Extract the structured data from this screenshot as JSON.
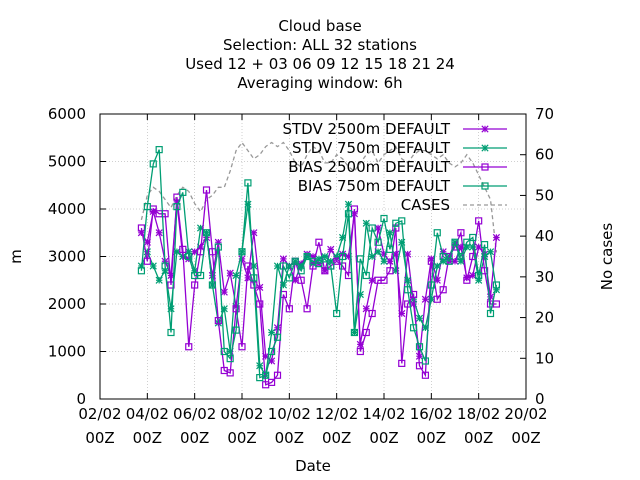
{
  "chart_data": {
    "type": "line",
    "title_lines": [
      "Cloud base",
      "Selection: ALL      32 stations",
      "Used  12 + 03 06 09 12 15 18 21 24",
      "Averaging window:  6h"
    ],
    "xlabel": "Date",
    "ylabel": "m",
    "y2label": "No cases",
    "x_ticks": [
      {
        "day": 2,
        "top": "02/02",
        "bottom": "00Z"
      },
      {
        "day": 4,
        "top": "04/02",
        "bottom": "00Z"
      },
      {
        "day": 6,
        "top": "06/02",
        "bottom": "00Z"
      },
      {
        "day": 8,
        "top": "08/02",
        "bottom": "00Z"
      },
      {
        "day": 10,
        "top": "10/02",
        "bottom": "00Z"
      },
      {
        "day": 12,
        "top": "12/02",
        "bottom": "00Z"
      },
      {
        "day": 14,
        "top": "14/02",
        "bottom": "00Z"
      },
      {
        "day": 16,
        "top": "16/02",
        "bottom": "00Z"
      },
      {
        "day": 18,
        "top": "18/02",
        "bottom": "00Z"
      },
      {
        "day": 20,
        "top": "20/02",
        "bottom": "00Z"
      }
    ],
    "xlim": [
      2,
      20
    ],
    "ylim": [
      0,
      6000
    ],
    "y_ticks": [
      0,
      1000,
      2000,
      3000,
      4000,
      5000,
      6000
    ],
    "y2lim": [
      0,
      70
    ],
    "y2_ticks": [
      0,
      10,
      20,
      30,
      40,
      50,
      60,
      70
    ],
    "grid": true,
    "legend_position": "top-right",
    "series": [
      {
        "name": "STDV 2500m DEFAULT",
        "axis": "y",
        "color": "#9400d3",
        "marker": "star",
        "x": [
          3.75,
          4.0,
          4.25,
          4.5,
          4.75,
          5.0,
          5.25,
          5.5,
          5.75,
          6.0,
          6.25,
          6.5,
          6.75,
          7.0,
          7.25,
          7.5,
          7.75,
          8.0,
          8.25,
          8.5,
          8.75,
          9.0,
          9.25,
          9.5,
          9.75,
          10.0,
          10.25,
          10.5,
          10.75,
          11.0,
          11.25,
          11.5,
          11.75,
          12.0,
          12.25,
          12.5,
          12.75,
          13.0,
          13.25,
          13.5,
          13.75,
          14.0,
          14.25,
          14.5,
          14.75,
          15.0,
          15.25,
          15.5,
          15.75,
          16.0,
          16.25,
          16.5,
          16.75,
          17.0,
          17.25,
          17.5,
          17.75,
          18.0,
          18.25,
          18.5,
          18.75
        ],
        "y": [
          3500,
          3300,
          3950,
          3500,
          2900,
          2600,
          4150,
          3000,
          2950,
          3100,
          3200,
          3400,
          2600,
          3300,
          2250,
          2650,
          1950,
          2950,
          2550,
          3500,
          2350,
          900,
          800,
          1500,
          2950,
          2800,
          2500,
          2850,
          3050,
          3000,
          2850,
          2700,
          3150,
          2950,
          3050,
          3000,
          3900,
          1150,
          1900,
          2500,
          3600,
          3050,
          2900,
          3050,
          1800,
          3050,
          2000,
          900,
          2100,
          2950,
          2500,
          3100,
          2900,
          2900,
          3200,
          2550,
          2600,
          3200,
          3050,
          2150,
          3400
        ]
      },
      {
        "name": "STDV 750m DEFAULT",
        "axis": "y",
        "color": "#009e73",
        "marker": "star",
        "x": [
          3.75,
          4.0,
          4.25,
          4.5,
          4.75,
          5.0,
          5.25,
          5.5,
          5.75,
          6.0,
          6.25,
          6.5,
          6.75,
          7.0,
          7.25,
          7.5,
          7.75,
          8.0,
          8.25,
          8.5,
          8.75,
          9.0,
          9.25,
          9.5,
          9.75,
          10.0,
          10.25,
          10.5,
          10.75,
          11.0,
          11.25,
          11.5,
          11.75,
          12.0,
          12.25,
          12.5,
          12.75,
          13.0,
          13.25,
          13.5,
          13.75,
          14.0,
          14.25,
          14.5,
          14.75,
          15.0,
          15.25,
          15.5,
          15.75,
          16.0,
          16.25,
          16.5,
          16.75,
          17.0,
          17.25,
          17.5,
          17.75,
          18.0,
          18.25,
          18.5,
          18.75
        ],
        "y": [
          2800,
          3100,
          2800,
          2500,
          2700,
          1900,
          3100,
          3000,
          3100,
          2700,
          3600,
          3500,
          2400,
          1600,
          1900,
          1000,
          2600,
          3100,
          4100,
          2800,
          700,
          500,
          1400,
          2800,
          2400,
          2800,
          2900,
          2800,
          3000,
          2850,
          2950,
          3000,
          2900,
          3000,
          3400,
          4100,
          1400,
          2200,
          3700,
          3000,
          3100,
          2900,
          3500,
          2700,
          3300,
          2500,
          2100,
          1700,
          1500,
          2100,
          2800,
          2900,
          3000,
          3300,
          2900,
          3200,
          3200,
          2500,
          3000,
          3100,
          2300
        ]
      },
      {
        "name": "BIAS 2500m DEFAULT",
        "axis": "y",
        "color": "#9400d3",
        "marker": "square",
        "x": [
          3.75,
          4.0,
          4.25,
          4.5,
          4.75,
          5.0,
          5.25,
          5.5,
          5.75,
          6.0,
          6.25,
          6.5,
          6.75,
          7.0,
          7.25,
          7.5,
          7.75,
          8.0,
          8.25,
          8.5,
          8.75,
          9.0,
          9.25,
          9.5,
          9.75,
          10.0,
          10.25,
          10.5,
          10.75,
          11.0,
          11.25,
          11.5,
          11.75,
          12.0,
          12.25,
          12.5,
          12.75,
          13.0,
          13.25,
          13.5,
          13.75,
          14.0,
          14.25,
          14.5,
          14.75,
          15.0,
          15.25,
          15.5,
          15.75,
          16.0,
          16.25,
          16.5,
          16.75,
          17.0,
          17.25,
          17.5,
          17.75,
          18.0,
          18.25,
          18.5,
          18.75
        ],
        "y": [
          3600,
          2900,
          4000,
          3900,
          3900,
          2400,
          4250,
          3150,
          1100,
          2400,
          3100,
          4400,
          3100,
          1650,
          600,
          550,
          1900,
          1100,
          2800,
          2400,
          2000,
          300,
          350,
          500,
          2200,
          1900,
          2900,
          2500,
          1900,
          2800,
          3300,
          2700,
          2800,
          2900,
          2800,
          2600,
          4000,
          1000,
          1400,
          1800,
          2500,
          2500,
          2700,
          3600,
          750,
          2000,
          2200,
          700,
          500,
          2900,
          2100,
          2300,
          3000,
          3200,
          3500,
          2500,
          3000,
          3750,
          2700,
          2000,
          2000
        ]
      },
      {
        "name": "BIAS 750m DEFAULT",
        "axis": "y",
        "color": "#009e73",
        "marker": "square",
        "x": [
          3.75,
          4.0,
          4.25,
          4.5,
          4.75,
          5.0,
          5.25,
          5.5,
          5.75,
          6.0,
          6.25,
          6.5,
          6.75,
          7.0,
          7.25,
          7.5,
          7.75,
          8.0,
          8.25,
          8.5,
          8.75,
          9.0,
          9.25,
          9.5,
          9.75,
          10.0,
          10.25,
          10.5,
          10.75,
          11.0,
          11.25,
          11.5,
          11.75,
          12.0,
          12.25,
          12.5,
          12.75,
          13.0,
          13.25,
          13.5,
          13.75,
          14.0,
          14.25,
          14.5,
          14.75,
          15.0,
          15.25,
          15.5,
          15.75,
          16.0,
          16.25,
          16.5,
          16.75,
          17.0,
          17.25,
          17.5,
          17.75,
          18.0,
          18.25,
          18.5,
          18.75
        ],
        "y": [
          2700,
          4050,
          4950,
          5250,
          2800,
          1400,
          4050,
          4350,
          3000,
          2600,
          2600,
          3500,
          2400,
          3200,
          1000,
          850,
          1450,
          3100,
          4550,
          2550,
          450,
          500,
          1000,
          1300,
          2800,
          2550,
          2900,
          2700,
          3000,
          2900,
          2850,
          2950,
          2800,
          1800,
          3000,
          3900,
          1400,
          2950,
          2600,
          3600,
          3300,
          3800,
          3150,
          3700,
          3750,
          2300,
          1500,
          1100,
          800,
          2400,
          3500,
          3000,
          2900,
          3300,
          3000,
          3300,
          3400,
          2600,
          3250,
          1800,
          2400
        ]
      },
      {
        "name": "CASES",
        "axis": "y2",
        "color": "#999999",
        "marker": "none",
        "dashed": true,
        "x": [
          3.75,
          4.0,
          4.25,
          4.5,
          4.75,
          5.0,
          5.25,
          5.5,
          5.75,
          6.0,
          6.25,
          6.5,
          6.75,
          7.0,
          7.25,
          7.5,
          7.75,
          8.0,
          8.25,
          8.5,
          8.75,
          9.0,
          9.25,
          9.5,
          9.75,
          10.0,
          10.25,
          10.5,
          10.75,
          11.0,
          11.25,
          11.5,
          11.75,
          12.0,
          12.25,
          12.5,
          12.75,
          13.0,
          13.25,
          13.5,
          13.75,
          14.0,
          14.25,
          14.5,
          14.75,
          15.0,
          15.25,
          15.5,
          15.75,
          16.0,
          16.25,
          16.5,
          16.75,
          17.0,
          17.25,
          17.5,
          17.75,
          18.0,
          18.25,
          18.5,
          18.75
        ],
        "y": [
          44,
          50,
          52,
          51,
          49,
          47,
          50,
          52,
          51,
          48,
          46,
          49,
          50,
          52,
          52,
          56,
          61,
          63,
          61,
          59,
          60,
          62,
          63,
          62,
          63,
          61,
          58,
          57,
          60,
          62,
          61,
          58,
          58,
          60,
          59,
          57,
          56,
          58,
          60,
          61,
          58,
          60,
          61,
          62,
          59,
          58,
          60,
          61,
          61,
          60,
          59,
          60,
          58,
          57,
          58,
          60,
          58,
          55,
          52,
          49,
          36
        ]
      }
    ]
  }
}
